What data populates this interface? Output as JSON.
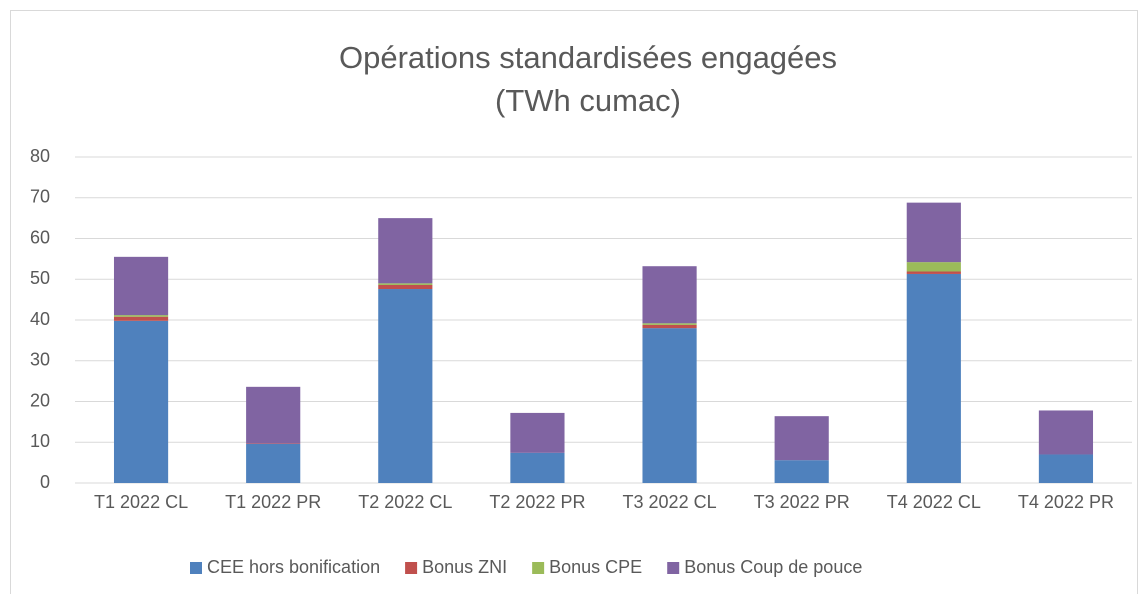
{
  "chart_data": {
    "type": "bar",
    "stacked": true,
    "title": "Opérations standardisées engagées",
    "subtitle": "(TWh cumac)",
    "categories": [
      "T1 2022 CL",
      "T1 2022 PR",
      "T2 2022 CL",
      "T2 2022 PR",
      "T3 2022 CL",
      "T3 2022 PR",
      "T4 2022 CL",
      "T4 2022 PR"
    ],
    "series": [
      {
        "name": "CEE hors bonification",
        "color": "#4f81bd",
        "values": [
          39.8,
          9.6,
          47.6,
          7.4,
          38,
          5.6,
          51.3,
          7
        ]
      },
      {
        "name": "Bonus ZNI",
        "color": "#c0504d",
        "values": [
          1,
          0.1,
          1,
          0,
          0.8,
          0,
          0.6,
          0
        ]
      },
      {
        "name": "Bonus CPE",
        "color": "#9bbb59",
        "values": [
          0.4,
          0,
          0.4,
          0,
          0.4,
          0,
          2.3,
          0
        ]
      },
      {
        "name": "Bonus Coup de pouce",
        "color": "#8064a2",
        "values": [
          14.3,
          13.9,
          16,
          9.8,
          14,
          10.8,
          14.6,
          10.8
        ]
      }
    ],
    "ylim": [
      0,
      80
    ],
    "yticks": [
      0,
      10,
      20,
      30,
      40,
      50,
      60,
      70,
      80
    ],
    "grid": true,
    "legend": "bottom"
  }
}
